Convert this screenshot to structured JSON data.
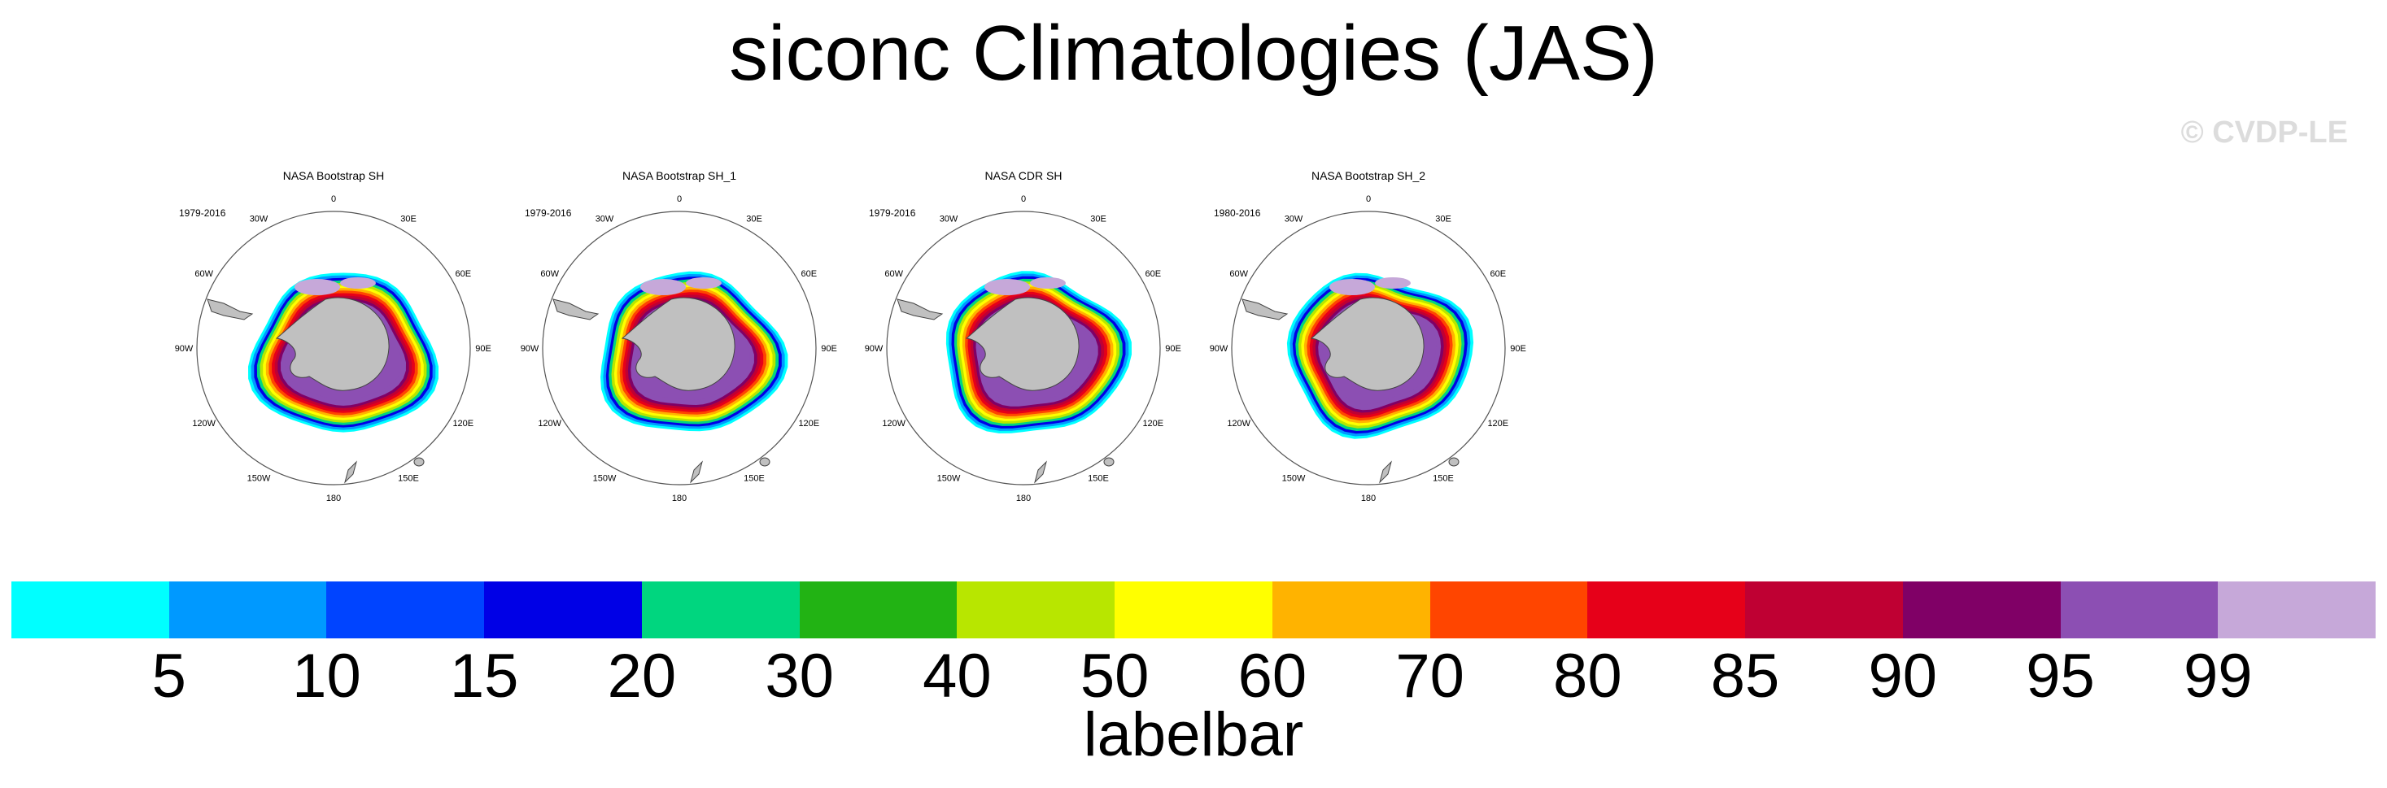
{
  "chart_data": {
    "type": "heatmap",
    "title": "siconc Climatologies (JAS)",
    "watermark": "© CVDP-LE",
    "panels": [
      {
        "title": "NASA Bootstrap SH",
        "years": "1979-2016"
      },
      {
        "title": "NASA Bootstrap SH_1",
        "years": "1979-2016"
      },
      {
        "title": "NASA CDR SH",
        "years": "1979-2016"
      },
      {
        "title": "NASA Bootstrap SH_2",
        "years": "1980-2016"
      }
    ],
    "lon_labels": [
      "0",
      "30E",
      "60E",
      "90E",
      "120E",
      "150E",
      "180",
      "150W",
      "120W",
      "90W",
      "60W",
      "30W"
    ],
    "colorbar": {
      "title": "labelbar",
      "levels": [
        "5",
        "10",
        "15",
        "20",
        "30",
        "40",
        "50",
        "60",
        "70",
        "80",
        "85",
        "90",
        "95",
        "99"
      ],
      "colors": [
        "#00ffff",
        "#0099ff",
        "#0044ff",
        "#0000e6",
        "#00d67f",
        "#22b314",
        "#b8e600",
        "#ffff00",
        "#ffb300",
        "#ff4500",
        "#e60019",
        "#bf0033",
        "#800066",
        "#8c4fb3",
        "#c6a8d9"
      ]
    }
  }
}
